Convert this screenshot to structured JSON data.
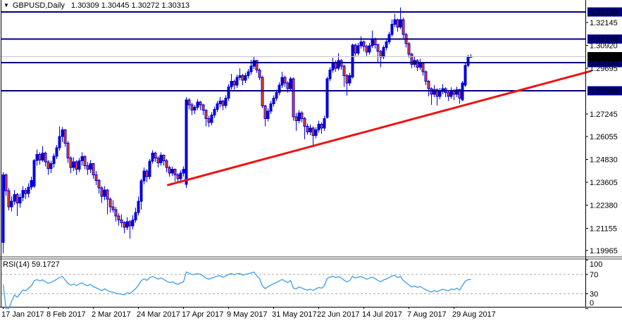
{
  "title": {
    "symbol": "GBPUSD,Daily",
    "ohlc": "1.30309 1.30445 1.30272 1.30313"
  },
  "rsi": {
    "label": "RSI(14) 59.1727",
    "name": "RSI",
    "period": 14,
    "value": 59.1727,
    "axis_labels": [
      "100",
      "70",
      "30",
      "0"
    ],
    "dashed_levels": [
      70,
      30
    ]
  },
  "price_axis": {
    "ticks": [
      "1.32145",
      "1.30920",
      "1.29695",
      "1.27245",
      "1.26055",
      "1.24830",
      "1.23605",
      "1.22380",
      "1.21155",
      "1.19965"
    ],
    "level_badges": [
      "1.32700",
      "1.31250",
      "1.30000",
      "1.28500"
    ],
    "bid_badge": "1.30313"
  },
  "time_axis": {
    "labels": [
      {
        "text": "17 Jan 2017",
        "idx": 0
      },
      {
        "text": "8 Feb 2017",
        "idx": 16
      },
      {
        "text": "2 Mar 2017",
        "idx": 32
      },
      {
        "text": "24 Mar 2017",
        "idx": 48
      },
      {
        "text": "17 Apr 2017",
        "idx": 64
      },
      {
        "text": "9 May 2017",
        "idx": 80
      },
      {
        "text": "31 May 2017",
        "idx": 96
      },
      {
        "text": "22 Jun 2017",
        "idx": 112
      },
      {
        "text": "14 Jul 2017",
        "idx": 128
      },
      {
        "text": "7 Aug 2017",
        "idx": 144
      },
      {
        "text": "29 Aug 2017",
        "idx": 160
      }
    ]
  },
  "colors": {
    "candle_blue": "#0000DF",
    "bear_fill": "#FF4500",
    "level_line": "#000080",
    "trend_red": "#F01010",
    "bid_line": "#C6C6C6",
    "rsi_line": "#3E9DE5",
    "dash_gray": "#A8A8A8",
    "badge_navy": "#000080",
    "badge_black": "#000000",
    "badge_text": "#FFFFFF",
    "axis_text": "#000000",
    "frame": "#000000"
  },
  "chart_data": {
    "type": "candlestick",
    "symbol": "GBPUSD",
    "timeframe": "Daily",
    "title": "GBPUSD,Daily",
    "ylim": [
      1.19965,
      1.327
    ],
    "grid": false,
    "ohlc_current": {
      "open": 1.30309,
      "high": 1.30445,
      "low": 1.30272,
      "close": 1.30313
    },
    "horizontal_levels": [
      1.327,
      1.3125,
      1.3,
      1.285
    ],
    "bid_price": 1.30313,
    "trendline": {
      "idx1": 58.5,
      "price1": 1.2346,
      "idx2": 208.5,
      "price2": 1.2954
    },
    "indicator": {
      "name": "RSI",
      "period": 14,
      "last_value": 59.1727,
      "levels": [
        100,
        70,
        30,
        0
      ],
      "range": [
        0,
        100
      ]
    },
    "candles": [
      [
        1.204,
        1.2415,
        1.1982,
        1.24
      ],
      [
        1.24,
        1.2408,
        1.229,
        1.2315
      ],
      [
        1.2315,
        1.233,
        1.221,
        1.223
      ],
      [
        1.223,
        1.2285,
        1.2205,
        1.226
      ],
      [
        1.226,
        1.232,
        1.224,
        1.2295
      ],
      [
        1.2295,
        1.2305,
        1.218,
        1.225
      ],
      [
        1.225,
        1.23,
        1.2225,
        1.228
      ],
      [
        1.228,
        1.234,
        1.226,
        1.2318
      ],
      [
        1.2318,
        1.233,
        1.227,
        1.23
      ],
      [
        1.23,
        1.2355,
        1.228,
        1.2335
      ],
      [
        1.2335,
        1.239,
        1.232,
        1.237
      ],
      [
        1.234,
        1.2485,
        1.233,
        1.2477
      ],
      [
        1.2477,
        1.2535,
        1.245,
        1.251
      ],
      [
        1.251,
        1.252,
        1.2455,
        1.248
      ],
      [
        1.248,
        1.2555,
        1.247,
        1.2516
      ],
      [
        1.2516,
        1.2525,
        1.2445,
        1.247
      ],
      [
        1.247,
        1.248,
        1.24,
        1.2435
      ],
      [
        1.2435,
        1.2475,
        1.241,
        1.246
      ],
      [
        1.246,
        1.2515,
        1.244,
        1.25
      ],
      [
        1.25,
        1.256,
        1.2485,
        1.2545
      ],
      [
        1.2545,
        1.266,
        1.253,
        1.2605
      ],
      [
        1.2605,
        1.2655,
        1.2575,
        1.264
      ],
      [
        1.264,
        1.2645,
        1.255,
        1.257
      ],
      [
        1.257,
        1.258,
        1.2465,
        1.249
      ],
      [
        1.249,
        1.25,
        1.241,
        1.244
      ],
      [
        1.244,
        1.2495,
        1.242,
        1.247
      ],
      [
        1.247,
        1.248,
        1.24,
        1.243
      ],
      [
        1.243,
        1.249,
        1.2415,
        1.2475
      ],
      [
        1.2475,
        1.252,
        1.245,
        1.2497
      ],
      [
        1.2497,
        1.2505,
        1.243,
        1.245
      ],
      [
        1.245,
        1.247,
        1.24,
        1.243
      ],
      [
        1.243,
        1.248,
        1.241,
        1.246
      ],
      [
        1.246,
        1.2465,
        1.238,
        1.24
      ],
      [
        1.24,
        1.242,
        1.2345,
        1.237
      ],
      [
        1.237,
        1.238,
        1.23,
        1.233
      ],
      [
        1.233,
        1.234,
        1.225,
        1.2285
      ],
      [
        1.2285,
        1.234,
        1.2265,
        1.232
      ],
      [
        1.232,
        1.2325,
        1.219,
        1.227
      ],
      [
        1.227,
        1.228,
        1.22,
        1.223
      ],
      [
        1.223,
        1.2265,
        1.22,
        1.2215
      ],
      [
        1.2215,
        1.223,
        1.215,
        1.218
      ],
      [
        1.218,
        1.2195,
        1.213,
        1.216
      ],
      [
        1.216,
        1.219,
        1.212,
        1.2145
      ],
      [
        1.2145,
        1.2155,
        1.2088,
        1.212
      ],
      [
        1.212,
        1.2175,
        1.2105,
        1.215
      ],
      [
        1.215,
        1.216,
        1.206,
        1.2128
      ],
      [
        1.2128,
        1.2185,
        1.211,
        1.216
      ],
      [
        1.216,
        1.2225,
        1.2145,
        1.22
      ],
      [
        1.22,
        1.2285,
        1.2185,
        1.226
      ],
      [
        1.226,
        1.238,
        1.2214,
        1.2369
      ],
      [
        1.2369,
        1.244,
        1.235,
        1.242
      ],
      [
        1.242,
        1.243,
        1.236,
        1.239
      ],
      [
        1.239,
        1.2485,
        1.2375,
        1.2473
      ],
      [
        1.2473,
        1.2532,
        1.246,
        1.2516
      ],
      [
        1.2516,
        1.2525,
        1.247,
        1.249
      ],
      [
        1.249,
        1.25,
        1.244,
        1.2465
      ],
      [
        1.2465,
        1.252,
        1.245,
        1.2505
      ],
      [
        1.2505,
        1.251,
        1.245,
        1.2475
      ],
      [
        1.2475,
        1.2485,
        1.2415,
        1.244
      ],
      [
        1.244,
        1.245,
        1.239,
        1.241
      ],
      [
        1.241,
        1.2445,
        1.2395,
        1.243
      ],
      [
        1.243,
        1.2435,
        1.2365,
        1.24
      ],
      [
        1.24,
        1.241,
        1.2355,
        1.238
      ],
      [
        1.238,
        1.2425,
        1.2365,
        1.241
      ],
      [
        1.241,
        1.2445,
        1.239,
        1.243
      ],
      [
        1.235,
        1.2815,
        1.233,
        1.28
      ],
      [
        1.28,
        1.281,
        1.275,
        1.2775
      ],
      [
        1.2775,
        1.2785,
        1.272,
        1.2745
      ],
      [
        1.2745,
        1.2775,
        1.2725,
        1.276
      ],
      [
        1.276,
        1.2805,
        1.2745,
        1.279
      ],
      [
        1.279,
        1.2795,
        1.2745,
        1.2775
      ],
      [
        1.2775,
        1.278,
        1.272,
        1.2745
      ],
      [
        1.2745,
        1.275,
        1.266,
        1.27
      ],
      [
        1.27,
        1.2715,
        1.2655,
        1.268
      ],
      [
        1.268,
        1.2735,
        1.2665,
        1.272
      ],
      [
        1.272,
        1.2765,
        1.2705,
        1.275
      ],
      [
        1.275,
        1.2795,
        1.2735,
        1.278
      ],
      [
        1.278,
        1.2815,
        1.276,
        1.2795
      ],
      [
        1.2795,
        1.28,
        1.2745,
        1.277
      ],
      [
        1.277,
        1.2825,
        1.2755,
        1.281
      ],
      [
        1.281,
        1.2885,
        1.2795,
        1.287
      ],
      [
        1.287,
        1.294,
        1.2855,
        1.29
      ],
      [
        1.29,
        1.291,
        1.2855,
        1.288
      ],
      [
        1.288,
        1.2935,
        1.2865,
        1.292
      ],
      [
        1.292,
        1.297,
        1.2905,
        1.293
      ],
      [
        1.293,
        1.294,
        1.288,
        1.2905
      ],
      [
        1.2905,
        1.2945,
        1.289,
        1.293
      ],
      [
        1.293,
        1.2965,
        1.2915,
        1.295
      ],
      [
        1.295,
        1.3015,
        1.2935,
        1.298
      ],
      [
        1.298,
        1.303,
        1.2965,
        1.301
      ],
      [
        1.301,
        1.3015,
        1.2945,
        1.296
      ],
      [
        1.296,
        1.297,
        1.2905,
        1.2921
      ],
      [
        1.2921,
        1.293,
        1.2755,
        1.2768
      ],
      [
        1.2768,
        1.2775,
        1.2659,
        1.27
      ],
      [
        1.27,
        1.2755,
        1.2685,
        1.274
      ],
      [
        1.274,
        1.2795,
        1.2725,
        1.278
      ],
      [
        1.278,
        1.2825,
        1.2765,
        1.281
      ],
      [
        1.281,
        1.2855,
        1.2795,
        1.284
      ],
      [
        1.284,
        1.2895,
        1.2825,
        1.288
      ],
      [
        1.288,
        1.295,
        1.2865,
        1.292
      ],
      [
        1.292,
        1.293,
        1.287,
        1.289
      ],
      [
        1.289,
        1.29,
        1.284,
        1.286
      ],
      [
        1.286,
        1.2925,
        1.2845,
        1.2913
      ],
      [
        1.2913,
        1.292,
        1.269,
        1.271
      ],
      [
        1.271,
        1.273,
        1.2636,
        1.269
      ],
      [
        1.269,
        1.2745,
        1.2675,
        1.273
      ],
      [
        1.273,
        1.274,
        1.268,
        1.27
      ],
      [
        1.27,
        1.271,
        1.259,
        1.266
      ],
      [
        1.266,
        1.2675,
        1.2615,
        1.263
      ],
      [
        1.263,
        1.2668,
        1.2612,
        1.265
      ],
      [
        1.265,
        1.266,
        1.2556,
        1.261
      ],
      [
        1.261,
        1.2655,
        1.2595,
        1.264
      ],
      [
        1.264,
        1.269,
        1.2625,
        1.267
      ],
      [
        1.267,
        1.268,
        1.262,
        1.265
      ],
      [
        1.265,
        1.2715,
        1.2635,
        1.27
      ],
      [
        1.2706,
        1.2925,
        1.27,
        1.2913
      ],
      [
        1.2913,
        1.2975,
        1.29,
        1.296
      ],
      [
        1.296,
        1.3025,
        1.2945,
        1.3
      ],
      [
        1.3,
        1.301,
        1.295,
        1.297
      ],
      [
        1.297,
        1.305,
        1.2958,
        1.301
      ],
      [
        1.301,
        1.3018,
        1.2962,
        1.298
      ],
      [
        1.298,
        1.2988,
        1.287,
        1.293
      ],
      [
        1.293,
        1.294,
        1.2822,
        1.289
      ],
      [
        1.289,
        1.2945,
        1.2875,
        1.293
      ],
      [
        1.2922,
        1.31,
        1.2915,
        1.3093
      ],
      [
        1.3093,
        1.31,
        1.3035,
        1.305
      ],
      [
        1.305,
        1.3105,
        1.3038,
        1.309
      ],
      [
        1.309,
        1.314,
        1.3075,
        1.311
      ],
      [
        1.311,
        1.3118,
        1.306,
        1.3085
      ],
      [
        1.3085,
        1.3095,
        1.3035,
        1.3055
      ],
      [
        1.3055,
        1.3105,
        1.3042,
        1.309
      ],
      [
        1.309,
        1.317,
        1.3078,
        1.3125
      ],
      [
        1.3125,
        1.3132,
        1.3075,
        1.3095
      ],
      [
        1.3095,
        1.31,
        1.3,
        1.306
      ],
      [
        1.306,
        1.3068,
        1.2975,
        1.303
      ],
      [
        1.303,
        1.3092,
        1.3018,
        1.308
      ],
      [
        1.308,
        1.3125,
        1.3065,
        1.311
      ],
      [
        1.311,
        1.3165,
        1.3098,
        1.315
      ],
      [
        1.315,
        1.323,
        1.3138,
        1.3205
      ],
      [
        1.3205,
        1.326,
        1.319,
        1.3228
      ],
      [
        1.3228,
        1.3235,
        1.3165,
        1.319
      ],
      [
        1.319,
        1.3295,
        1.3178,
        1.3228
      ],
      [
        1.3228,
        1.324,
        1.313,
        1.315
      ],
      [
        1.315,
        1.316,
        1.308,
        1.31
      ],
      [
        1.31,
        1.311,
        1.3025,
        1.3045
      ],
      [
        1.3045,
        1.3052,
        1.297,
        1.299
      ],
      [
        1.299,
        1.3035,
        1.2975,
        1.301
      ],
      [
        1.301,
        1.3018,
        1.2955,
        1.2975
      ],
      [
        1.2975,
        1.302,
        1.296,
        1.2995
      ],
      [
        1.2995,
        1.3002,
        1.293,
        1.295
      ],
      [
        1.295,
        1.2958,
        1.288,
        1.29
      ],
      [
        1.29,
        1.2908,
        1.282,
        1.286
      ],
      [
        1.286,
        1.2868,
        1.2774,
        1.283
      ],
      [
        1.283,
        1.288,
        1.2815,
        1.2855
      ],
      [
        1.2855,
        1.2862,
        1.277,
        1.282
      ],
      [
        1.282,
        1.2865,
        1.2805,
        1.2845
      ],
      [
        1.2845,
        1.2885,
        1.283,
        1.286
      ],
      [
        1.286,
        1.2868,
        1.2815,
        1.284
      ],
      [
        1.284,
        1.2848,
        1.2795,
        1.282
      ],
      [
        1.282,
        1.2868,
        1.2806,
        1.285
      ],
      [
        1.285,
        1.2858,
        1.2798,
        1.283
      ],
      [
        1.283,
        1.2872,
        1.2816,
        1.2855
      ],
      [
        1.2855,
        1.286,
        1.278,
        1.281
      ],
      [
        1.28,
        1.2902,
        1.2792,
        1.289
      ],
      [
        1.288,
        1.2995,
        1.287,
        1.2985
      ],
      [
        1.2985,
        1.304,
        1.2975,
        1.3028
      ],
      [
        1.30309,
        1.30445,
        1.30272,
        1.30313
      ]
    ],
    "x_labels": [
      "17 Jan 2017",
      "8 Feb 2017",
      "2 Mar 2017",
      "24 Mar 2017",
      "17 Apr 2017",
      "9 May 2017",
      "31 May 2017",
      "22 Jun 2017",
      "14 Jul 2017",
      "7 Aug 2017",
      "29 Aug 2017"
    ]
  }
}
